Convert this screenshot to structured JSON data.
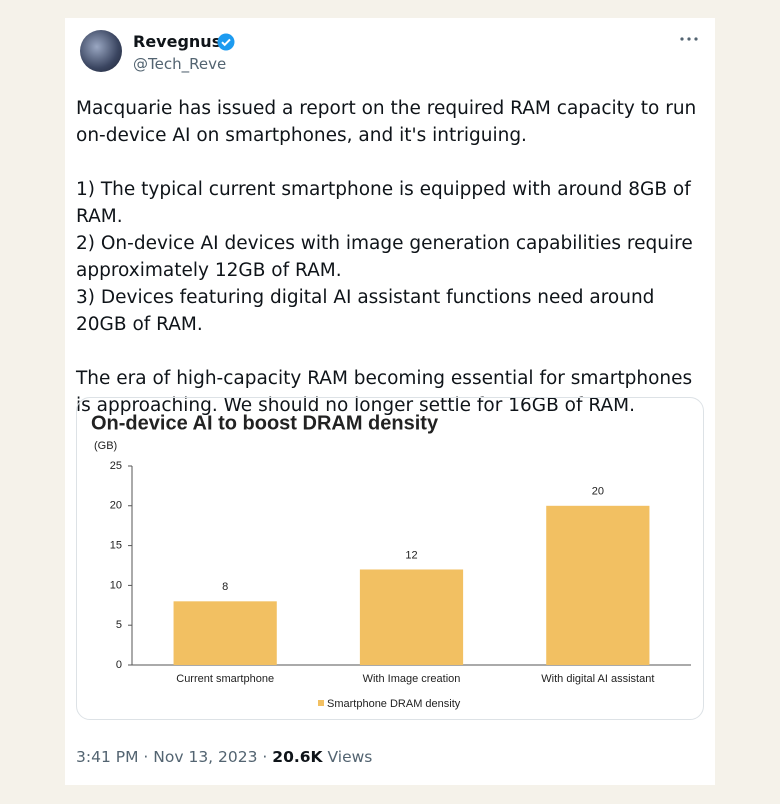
{
  "user": {
    "name": "Revegnus",
    "handle": "@Tech_Reve"
  },
  "tweet": {
    "paragraphs": [
      [
        "Macquarie has issued a report on the required RAM capacity to run on-device AI on smartphones, and it's intriguing."
      ],
      [
        "1) The typical current smartphone is equipped with around 8GB of RAM.",
        "2) On-device AI devices with image generation capabilities require approximately 12GB of RAM.",
        "3) Devices featuring digital AI assistant functions need around 20GB of RAM."
      ],
      [
        "The era of high-capacity RAM becoming essential for smartphones is approaching. We should no longer settle for 16GB of RAM."
      ]
    ]
  },
  "footer": {
    "time": "3:41 PM",
    "separator": "·",
    "date": "Nov 13, 2023",
    "views": "20.6K",
    "views_label": "Views"
  },
  "chart_data": {
    "type": "bar",
    "title": "On-device AI to boost DRAM density",
    "y_unit": "(GB)",
    "categories": [
      "Current smartphone",
      "With Image creation",
      "With digital AI assistant"
    ],
    "series": [
      {
        "name": "Smartphone DRAM density",
        "color": "#f2c062",
        "values": [
          8,
          12,
          20
        ]
      }
    ],
    "ylim": [
      0,
      25
    ],
    "yticks": [
      0,
      5,
      10,
      15,
      20,
      25
    ],
    "grid": false
  }
}
